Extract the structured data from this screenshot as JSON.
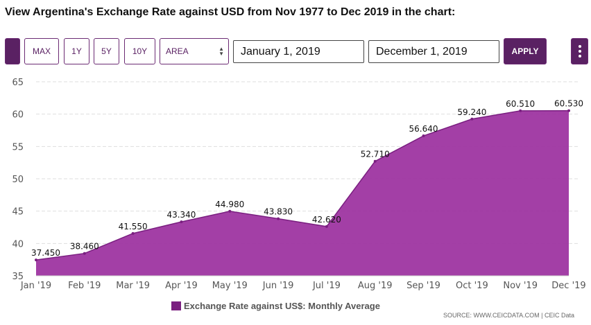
{
  "page": {
    "title": "View Argentina's Exchange Rate against USD from Nov 1977 to Dec 2019 in the chart:"
  },
  "toolbar": {
    "max_label": "MAX",
    "y1_label": "1Y",
    "y5_label": "5Y",
    "y10_label": "10Y",
    "chart_type_value": "AREA",
    "start_date": "January 1, 2019",
    "end_date": "December 1, 2019",
    "apply_label": "APPLY"
  },
  "colors": {
    "accent": "#5a2163",
    "series_fill": "#9b2f9e",
    "series_line": "#7a1f80"
  },
  "legend": {
    "label": "Exchange Rate against US$: Monthly Average"
  },
  "source": {
    "text": "SOURCE: WWW.CEICDATA.COM | CEIC Data"
  },
  "chart_data": {
    "type": "area",
    "categories": [
      "Jan '19",
      "Feb '19",
      "Mar '19",
      "Apr '19",
      "May '19",
      "Jun '19",
      "Jul '19",
      "Aug '19",
      "Sep '19",
      "Oct '19",
      "Nov '19",
      "Dec '19"
    ],
    "series": [
      {
        "name": "Exchange Rate against US$: Monthly Average",
        "values": [
          37.45,
          38.46,
          41.55,
          43.34,
          44.98,
          43.83,
          42.62,
          52.71,
          56.64,
          59.24,
          60.51,
          60.53
        ],
        "labels": [
          "37.450",
          "38.460",
          "41.550",
          "43.340",
          "44.980",
          "43.830",
          "42.620",
          "52.710",
          "56.640",
          "59.240",
          "60.510",
          "60.530"
        ]
      }
    ],
    "ylim": [
      35,
      65
    ],
    "yticks": [
      35,
      40,
      45,
      50,
      55,
      60,
      65
    ],
    "grid": true,
    "legend_position": "bottom-center"
  }
}
